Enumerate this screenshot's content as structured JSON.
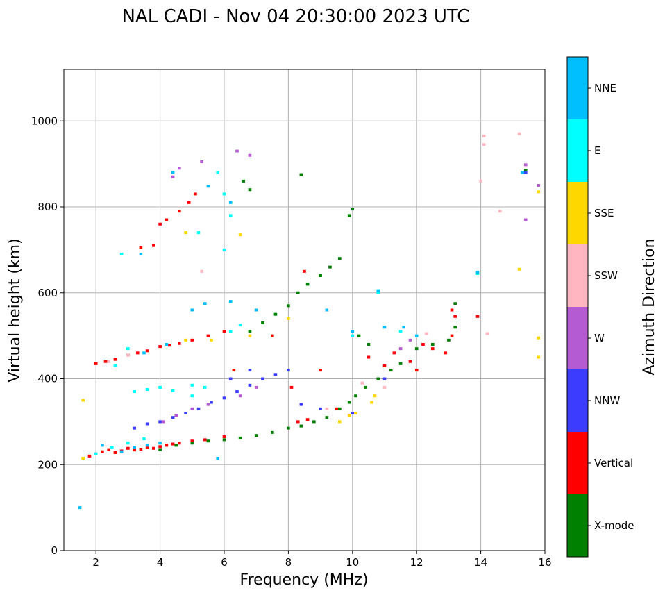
{
  "chart_data": {
    "type": "scatter",
    "title": "NAL CADI - Nov 04 20:30:00 2023 UTC",
    "xlabel": "Frequency (MHz)",
    "ylabel": "Virtual height (km)",
    "xlim": [
      1,
      16
    ],
    "ylim": [
      0,
      1120
    ],
    "xticks": [
      2,
      4,
      6,
      8,
      10,
      12,
      14,
      16
    ],
    "yticks": [
      0,
      200,
      400,
      600,
      800,
      1000
    ],
    "grid": true,
    "colorbar": {
      "title": "Azimuth Direction",
      "categories": [
        {
          "name": "X-mode",
          "color": "#008000"
        },
        {
          "name": "Vertical",
          "color": "#ff0000"
        },
        {
          "name": "NNW",
          "color": "#3c3cff"
        },
        {
          "name": "W",
          "color": "#b45ad2"
        },
        {
          "name": "SSW",
          "color": "#ffb6c1"
        },
        {
          "name": "SSE",
          "color": "#ffd700"
        },
        {
          "name": "E",
          "color": "#00ffff"
        },
        {
          "name": "NNE",
          "color": "#00bfff"
        }
      ]
    },
    "series": [
      {
        "name": "Vertical",
        "points": [
          [
            1.6,
            215
          ],
          [
            1.8,
            220
          ],
          [
            2.0,
            225
          ],
          [
            2.2,
            230
          ],
          [
            2.4,
            235
          ],
          [
            2.6,
            228
          ],
          [
            2.8,
            232
          ],
          [
            3.0,
            238
          ],
          [
            3.2,
            234
          ],
          [
            3.4,
            236
          ],
          [
            3.6,
            240
          ],
          [
            3.8,
            238
          ],
          [
            4.0,
            242
          ],
          [
            4.2,
            245
          ],
          [
            4.4,
            248
          ],
          [
            4.6,
            250
          ],
          [
            5.0,
            255
          ],
          [
            5.4,
            258
          ],
          [
            6.0,
            265
          ],
          [
            2.0,
            435
          ],
          [
            2.3,
            440
          ],
          [
            2.6,
            445
          ],
          [
            3.0,
            455
          ],
          [
            3.3,
            460
          ],
          [
            3.6,
            465
          ],
          [
            4.0,
            475
          ],
          [
            4.3,
            478
          ],
          [
            4.6,
            482
          ],
          [
            5.0,
            490
          ],
          [
            5.5,
            500
          ],
          [
            6.0,
            510
          ],
          [
            3.4,
            705
          ],
          [
            3.8,
            710
          ],
          [
            4.0,
            760
          ],
          [
            4.2,
            770
          ],
          [
            4.6,
            790
          ],
          [
            4.9,
            810
          ],
          [
            5.1,
            830
          ],
          [
            8.3,
            300
          ],
          [
            8.6,
            305
          ],
          [
            9.5,
            330
          ],
          [
            8.1,
            380
          ],
          [
            9.0,
            420
          ],
          [
            10.5,
            450
          ],
          [
            11.0,
            430
          ],
          [
            11.3,
            460
          ],
          [
            11.8,
            440
          ],
          [
            12.0,
            420
          ],
          [
            12.2,
            480
          ],
          [
            12.5,
            470
          ],
          [
            12.9,
            460
          ],
          [
            13.1,
            500
          ],
          [
            13.1,
            560
          ],
          [
            13.2,
            545
          ],
          [
            6.3,
            420
          ],
          [
            7.5,
            500
          ],
          [
            8.5,
            650
          ],
          [
            13.9,
            545
          ]
        ]
      },
      {
        "name": "X-mode",
        "points": [
          [
            4.0,
            235
          ],
          [
            4.5,
            245
          ],
          [
            5.0,
            250
          ],
          [
            5.5,
            255
          ],
          [
            6.0,
            258
          ],
          [
            6.5,
            262
          ],
          [
            7.0,
            268
          ],
          [
            7.5,
            275
          ],
          [
            8.0,
            285
          ],
          [
            8.4,
            290
          ],
          [
            8.8,
            300
          ],
          [
            9.2,
            310
          ],
          [
            9.6,
            330
          ],
          [
            9.9,
            345
          ],
          [
            10.1,
            360
          ],
          [
            10.4,
            380
          ],
          [
            10.8,
            400
          ],
          [
            11.2,
            420
          ],
          [
            11.5,
            435
          ],
          [
            12.0,
            470
          ],
          [
            12.5,
            480
          ],
          [
            13.0,
            490
          ],
          [
            13.2,
            520
          ],
          [
            13.2,
            575
          ],
          [
            6.8,
            510
          ],
          [
            7.2,
            530
          ],
          [
            7.6,
            550
          ],
          [
            8.0,
            570
          ],
          [
            8.3,
            600
          ],
          [
            8.6,
            620
          ],
          [
            9.0,
            640
          ],
          [
            9.3,
            660
          ],
          [
            9.6,
            680
          ],
          [
            9.9,
            780
          ],
          [
            10.0,
            795
          ],
          [
            8.4,
            875
          ],
          [
            6.6,
            860
          ],
          [
            6.8,
            840
          ],
          [
            15.4,
            885
          ],
          [
            10.2,
            500
          ],
          [
            10.5,
            480
          ],
          [
            7.0,
            560
          ]
        ]
      },
      {
        "name": "NNW",
        "points": [
          [
            3.2,
            285
          ],
          [
            3.6,
            295
          ],
          [
            4.0,
            300
          ],
          [
            4.4,
            310
          ],
          [
            4.8,
            320
          ],
          [
            5.2,
            330
          ],
          [
            5.6,
            345
          ],
          [
            6.0,
            355
          ],
          [
            6.4,
            370
          ],
          [
            6.8,
            385
          ],
          [
            7.2,
            400
          ],
          [
            7.6,
            410
          ],
          [
            8.0,
            420
          ],
          [
            8.4,
            340
          ],
          [
            9.0,
            330
          ],
          [
            10.0,
            320
          ],
          [
            6.2,
            400
          ],
          [
            6.8,
            420
          ],
          [
            15.4,
            880
          ],
          [
            11.0,
            400
          ]
        ]
      },
      {
        "name": "W",
        "points": [
          [
            4.1,
            300
          ],
          [
            4.5,
            315
          ],
          [
            5.0,
            330
          ],
          [
            5.5,
            340
          ],
          [
            6.5,
            360
          ],
          [
            7.0,
            380
          ],
          [
            4.6,
            890
          ],
          [
            4.4,
            870
          ],
          [
            5.3,
            905
          ],
          [
            6.4,
            930
          ],
          [
            6.8,
            920
          ],
          [
            15.4,
            770
          ],
          [
            15.4,
            898
          ],
          [
            15.8,
            850
          ],
          [
            11.5,
            470
          ],
          [
            11.8,
            490
          ]
        ]
      },
      {
        "name": "SSW",
        "points": [
          [
            2.4,
            440
          ],
          [
            3.0,
            455
          ],
          [
            5.3,
            650
          ],
          [
            9.2,
            330
          ],
          [
            10.3,
            390
          ],
          [
            11.0,
            380
          ],
          [
            12.3,
            505
          ],
          [
            14.1,
            945
          ],
          [
            14.1,
            965
          ],
          [
            15.2,
            970
          ],
          [
            14.6,
            790
          ],
          [
            14.0,
            860
          ],
          [
            14.2,
            505
          ]
        ]
      },
      {
        "name": "SSE",
        "points": [
          [
            1.6,
            350
          ],
          [
            1.6,
            215
          ],
          [
            4.8,
            490
          ],
          [
            5.6,
            490
          ],
          [
            6.8,
            500
          ],
          [
            8.0,
            540
          ],
          [
            9.6,
            300
          ],
          [
            9.9,
            315
          ],
          [
            10.1,
            320
          ],
          [
            10.6,
            345
          ],
          [
            10.7,
            360
          ],
          [
            15.2,
            655
          ],
          [
            15.8,
            495
          ],
          [
            15.8,
            450
          ],
          [
            15.8,
            835
          ],
          [
            6.5,
            735
          ],
          [
            4.8,
            740
          ]
        ]
      },
      {
        "name": "E",
        "points": [
          [
            2.0,
            225
          ],
          [
            2.5,
            240
          ],
          [
            3.0,
            250
          ],
          [
            3.5,
            260
          ],
          [
            3.2,
            370
          ],
          [
            3.6,
            375
          ],
          [
            4.0,
            380
          ],
          [
            4.4,
            372
          ],
          [
            5.0,
            385
          ],
          [
            5.4,
            380
          ],
          [
            2.6,
            430
          ],
          [
            3.0,
            470
          ],
          [
            6.2,
            510
          ],
          [
            6.5,
            525
          ],
          [
            6.0,
            830
          ],
          [
            6.2,
            780
          ],
          [
            5.8,
            880
          ],
          [
            2.8,
            690
          ],
          [
            6.0,
            700
          ],
          [
            5.0,
            360
          ],
          [
            5.2,
            740
          ],
          [
            10.0,
            500
          ],
          [
            10.8,
            600
          ],
          [
            11.5,
            510
          ],
          [
            13.9,
            645
          ]
        ]
      },
      {
        "name": "NNE",
        "points": [
          [
            1.5,
            100
          ],
          [
            2.2,
            245
          ],
          [
            2.8,
            230
          ],
          [
            3.2,
            240
          ],
          [
            3.6,
            245
          ],
          [
            4.0,
            250
          ],
          [
            3.5,
            460
          ],
          [
            4.2,
            480
          ],
          [
            5.0,
            560
          ],
          [
            5.4,
            575
          ],
          [
            6.2,
            580
          ],
          [
            7.0,
            560
          ],
          [
            9.2,
            560
          ],
          [
            10.0,
            510
          ],
          [
            10.8,
            605
          ],
          [
            11.0,
            520
          ],
          [
            11.6,
            520
          ],
          [
            12.0,
            500
          ],
          [
            5.8,
            215
          ],
          [
            3.4,
            690
          ],
          [
            4.4,
            880
          ],
          [
            5.5,
            848
          ],
          [
            6.2,
            810
          ],
          [
            15.3,
            880
          ],
          [
            13.9,
            648
          ]
        ]
      }
    ]
  }
}
